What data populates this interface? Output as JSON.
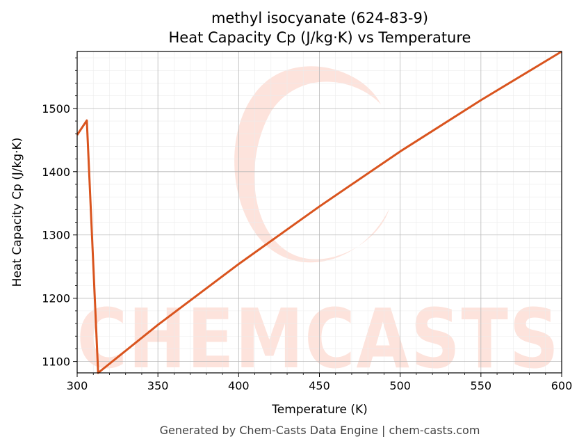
{
  "chart_data": {
    "type": "line",
    "title_line1": "methyl isocyanate (624-83-9)",
    "title_line2": "Heat Capacity Cp (J/kg·K) vs Temperature",
    "xlabel": "Temperature (K)",
    "ylabel": "Heat Capacity Cp (J/kg·K)",
    "xlim": [
      300,
      600
    ],
    "ylim": [
      1082,
      1590
    ],
    "x_ticks": [
      300,
      350,
      400,
      450,
      500,
      550,
      600
    ],
    "y_ticks": [
      1100,
      1200,
      1300,
      1400,
      1500
    ],
    "grid": true,
    "series": [
      {
        "color": "#d9541e",
        "x": [
          300,
          306,
          313,
          350,
          400,
          450,
          500,
          550,
          600
        ],
        "y": [
          1458,
          1481,
          1082,
          1158,
          1254,
          1345,
          1432,
          1513,
          1590
        ]
      }
    ]
  },
  "watermark": {
    "text": "CHEMCASTS",
    "color": "#fde3dc"
  },
  "footer": {
    "text": "Generated by Chem-Casts Data Engine | chem-casts.com"
  }
}
